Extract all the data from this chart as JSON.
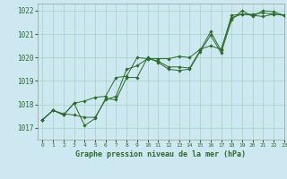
{
  "background_color": "#cde8f0",
  "grid_color": "#a8d8c8",
  "line_color": "#2d6a2d",
  "marker_color": "#2d6a2d",
  "xlabel": "Graphe pression niveau de la mer (hPa)",
  "xlim": [
    -0.5,
    23
  ],
  "ylim": [
    1016.5,
    1022.3
  ],
  "yticks": [
    1017,
    1018,
    1019,
    1020,
    1021,
    1022
  ],
  "xticks": [
    0,
    1,
    2,
    3,
    4,
    5,
    6,
    7,
    8,
    9,
    10,
    11,
    12,
    13,
    14,
    15,
    16,
    17,
    18,
    19,
    20,
    21,
    22,
    23
  ],
  "series": [
    [
      1017.35,
      1017.75,
      1017.6,
      1017.55,
      1017.45,
      1017.45,
      1018.2,
      1018.35,
      1019.5,
      1019.65,
      1019.95,
      1019.85,
      1019.6,
      1019.6,
      1019.55,
      1020.3,
      1021.1,
      1020.3,
      1021.8,
      1021.85,
      1021.85,
      1021.9,
      1021.85,
      1021.8
    ],
    [
      1017.35,
      1017.75,
      1017.55,
      1018.05,
      1018.15,
      1018.3,
      1018.35,
      1019.15,
      1019.2,
      1020.0,
      1019.95,
      1019.95,
      1019.95,
      1020.05,
      1020.0,
      1020.35,
      1020.5,
      1020.35,
      1021.7,
      1021.85,
      1021.8,
      1021.75,
      1021.85,
      1021.8
    ],
    [
      1017.35,
      1017.75,
      1017.55,
      1018.05,
      1017.1,
      1017.4,
      1018.25,
      1018.2,
      1019.15,
      1019.15,
      1020.0,
      1019.8,
      1019.5,
      1019.45,
      1019.5,
      1020.25,
      1020.95,
      1020.2,
      1021.6,
      1022.0,
      1021.75,
      1022.0,
      1021.95,
      1021.8
    ]
  ],
  "fig_width": 3.2,
  "fig_height": 2.0,
  "dpi": 100
}
